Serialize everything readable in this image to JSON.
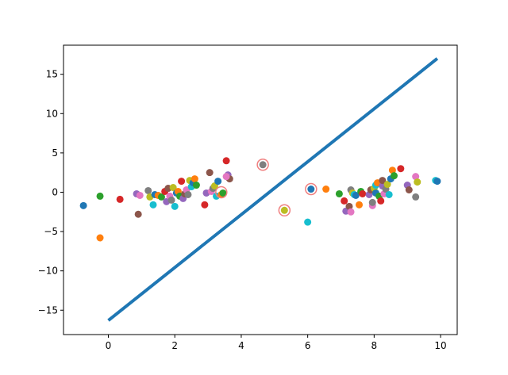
{
  "chart_data": {
    "type": "scatter",
    "title": "",
    "xlabel": "",
    "ylabel": "",
    "xlim": [
      -1.35,
      10.5
    ],
    "ylim": [
      -18.1,
      18.7
    ],
    "grid": false,
    "x_ticks": [
      0,
      2,
      4,
      6,
      8,
      10
    ],
    "y_ticks": [
      -15,
      -10,
      -5,
      0,
      5,
      10,
      15
    ],
    "line": {
      "x": [
        0,
        9.9
      ],
      "y": [
        -16.3,
        17.0
      ],
      "color": "#1f77b4"
    },
    "palette": [
      "#1f77b4",
      "#ff7f0e",
      "#2ca02c",
      "#d62728",
      "#9467bd",
      "#8c564b",
      "#e377c2",
      "#7f7f7f",
      "#bcbd22",
      "#17becf"
    ],
    "points": [
      [
        -0.75,
        -1.7
      ],
      [
        -0.25,
        -5.8
      ],
      [
        -0.25,
        -0.5
      ],
      [
        0.35,
        -0.9
      ],
      [
        0.85,
        -0.2
      ],
      [
        0.9,
        -2.8
      ],
      [
        0.95,
        -0.4
      ],
      [
        1.2,
        0.2
      ],
      [
        1.25,
        -0.6
      ],
      [
        1.35,
        -1.6
      ],
      [
        1.4,
        -0.3
      ],
      [
        1.5,
        -0.4
      ],
      [
        1.6,
        -0.6
      ],
      [
        1.7,
        0.1
      ],
      [
        1.75,
        -1.2
      ],
      [
        1.8,
        0.5
      ],
      [
        1.85,
        -0.5
      ],
      [
        1.9,
        -1.0
      ],
      [
        1.95,
        0.6
      ],
      [
        2.0,
        -1.8
      ],
      [
        2.05,
        -0.1
      ],
      [
        2.1,
        0.1
      ],
      [
        2.15,
        -0.5
      ],
      [
        2.2,
        1.4
      ],
      [
        2.25,
        -0.8
      ],
      [
        2.3,
        -0.2
      ],
      [
        2.35,
        0.3
      ],
      [
        2.4,
        -0.3
      ],
      [
        2.45,
        1.5
      ],
      [
        2.5,
        0.7
      ],
      [
        2.55,
        1.2
      ],
      [
        2.6,
        1.7
      ],
      [
        2.65,
        0.9
      ],
      [
        2.9,
        -1.6
      ],
      [
        2.95,
        -0.1
      ],
      [
        3.05,
        2.5
      ],
      [
        3.1,
        0.1
      ],
      [
        3.15,
        0.5
      ],
      [
        3.2,
        0.8
      ],
      [
        3.25,
        -0.5
      ],
      [
        3.3,
        1.4
      ],
      [
        3.4,
        -0.3
      ],
      [
        3.45,
        -0.1
      ],
      [
        3.55,
        4.0
      ],
      [
        3.6,
        2.2
      ],
      [
        3.65,
        1.7
      ],
      [
        3.55,
        2.0
      ],
      [
        4.65,
        3.5
      ],
      [
        5.3,
        -2.3
      ],
      [
        6.0,
        -3.8
      ],
      [
        6.1,
        0.4
      ],
      [
        6.55,
        0.4
      ],
      [
        6.95,
        -0.2
      ],
      [
        7.1,
        -1.1
      ],
      [
        7.15,
        -2.4
      ],
      [
        7.25,
        -1.8
      ],
      [
        7.3,
        -2.5
      ],
      [
        7.3,
        0.3
      ],
      [
        7.35,
        -0.1
      ],
      [
        7.4,
        -0.3
      ],
      [
        7.45,
        -0.4
      ],
      [
        7.55,
        -1.6
      ],
      [
        7.6,
        0.1
      ],
      [
        7.65,
        -0.2
      ],
      [
        7.85,
        -0.3
      ],
      [
        7.9,
        0.3
      ],
      [
        7.95,
        -1.7
      ],
      [
        7.95,
        -1.3
      ],
      [
        8.0,
        0.5
      ],
      [
        8.05,
        0.9
      ],
      [
        8.05,
        -0.1
      ],
      [
        8.1,
        1.2
      ],
      [
        8.15,
        -0.5
      ],
      [
        8.2,
        -1.1
      ],
      [
        8.25,
        0.8
      ],
      [
        8.25,
        1.5
      ],
      [
        8.3,
        -0.2
      ],
      [
        8.35,
        0.4
      ],
      [
        8.4,
        1.0
      ],
      [
        8.45,
        -0.3
      ],
      [
        8.5,
        1.7
      ],
      [
        8.55,
        2.8
      ],
      [
        8.6,
        2.1
      ],
      [
        8.8,
        3.0
      ],
      [
        9.0,
        0.9
      ],
      [
        9.05,
        0.3
      ],
      [
        9.25,
        2.0
      ],
      [
        9.25,
        -0.6
      ],
      [
        9.3,
        1.3
      ],
      [
        9.85,
        1.5
      ],
      [
        9.9,
        1.4
      ]
    ],
    "highlighted": [
      [
        3.4,
        0.0
      ],
      [
        4.65,
        3.5
      ],
      [
        5.3,
        -2.3
      ],
      [
        6.1,
        0.4
      ]
    ],
    "highlight_color": "#f08080"
  }
}
